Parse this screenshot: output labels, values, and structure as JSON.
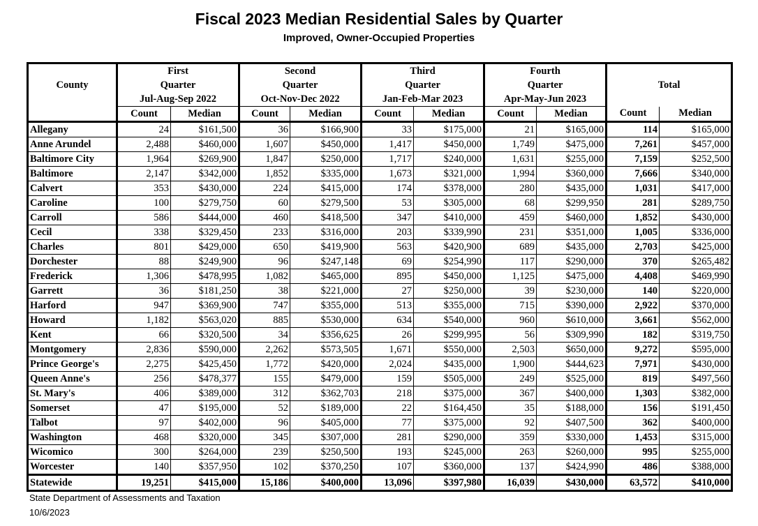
{
  "title": "Fiscal 2023 Median Residential Sales by Quarter",
  "subtitle": "Improved, Owner-Occupied Properties",
  "header": {
    "county": "County",
    "quarters": [
      {
        "line1": "First",
        "line2": "Quarter",
        "period": "Jul-Aug-Sep 2022"
      },
      {
        "line1": "Second",
        "line2": "Quarter",
        "period": "Oct-Nov-Dec 2022"
      },
      {
        "line1": "Third",
        "line2": "Quarter",
        "period": "Jan-Feb-Mar 2023"
      },
      {
        "line1": "Fourth",
        "line2": "Quarter",
        "period": "Apr-May-Jun 2023"
      }
    ],
    "total": "Total",
    "count": "Count",
    "median": "Median"
  },
  "rows": [
    {
      "county": "Allegany",
      "cells": [
        "24",
        "$161,500",
        "36",
        "$166,900",
        "33",
        "$175,000",
        "21",
        "$165,000",
        "114",
        "$165,000"
      ]
    },
    {
      "county": "Anne Arundel",
      "cells": [
        "2,488",
        "$460,000",
        "1,607",
        "$450,000",
        "1,417",
        "$450,000",
        "1,749",
        "$475,000",
        "7,261",
        "$457,000"
      ]
    },
    {
      "county": "Baltimore City",
      "cells": [
        "1,964",
        "$269,900",
        "1,847",
        "$250,000",
        "1,717",
        "$240,000",
        "1,631",
        "$255,000",
        "7,159",
        "$252,500"
      ]
    },
    {
      "county": "Baltimore",
      "cells": [
        "2,147",
        "$342,000",
        "1,852",
        "$335,000",
        "1,673",
        "$321,000",
        "1,994",
        "$360,000",
        "7,666",
        "$340,000"
      ]
    },
    {
      "county": "Calvert",
      "cells": [
        "353",
        "$430,000",
        "224",
        "$415,000",
        "174",
        "$378,000",
        "280",
        "$435,000",
        "1,031",
        "$417,000"
      ]
    },
    {
      "county": "Caroline",
      "cells": [
        "100",
        "$279,750",
        "60",
        "$279,500",
        "53",
        "$305,000",
        "68",
        "$299,950",
        "281",
        "$289,750"
      ]
    },
    {
      "county": "Carroll",
      "cells": [
        "586",
        "$444,000",
        "460",
        "$418,500",
        "347",
        "$410,000",
        "459",
        "$460,000",
        "1,852",
        "$430,000"
      ]
    },
    {
      "county": "Cecil",
      "cells": [
        "338",
        "$329,450",
        "233",
        "$316,000",
        "203",
        "$339,990",
        "231",
        "$351,000",
        "1,005",
        "$336,000"
      ]
    },
    {
      "county": "Charles",
      "cells": [
        "801",
        "$429,000",
        "650",
        "$419,900",
        "563",
        "$420,900",
        "689",
        "$435,000",
        "2,703",
        "$425,000"
      ]
    },
    {
      "county": "Dorchester",
      "cells": [
        "88",
        "$249,900",
        "96",
        "$247,148",
        "69",
        "$254,990",
        "117",
        "$290,000",
        "370",
        "$265,482"
      ]
    },
    {
      "county": "Frederick",
      "cells": [
        "1,306",
        "$478,995",
        "1,082",
        "$465,000",
        "895",
        "$450,000",
        "1,125",
        "$475,000",
        "4,408",
        "$469,990"
      ]
    },
    {
      "county": "Garrett",
      "cells": [
        "36",
        "$181,250",
        "38",
        "$221,000",
        "27",
        "$250,000",
        "39",
        "$230,000",
        "140",
        "$220,000"
      ]
    },
    {
      "county": "Harford",
      "cells": [
        "947",
        "$369,900",
        "747",
        "$355,000",
        "513",
        "$355,000",
        "715",
        "$390,000",
        "2,922",
        "$370,000"
      ]
    },
    {
      "county": "Howard",
      "cells": [
        "1,182",
        "$563,020",
        "885",
        "$530,000",
        "634",
        "$540,000",
        "960",
        "$610,000",
        "3,661",
        "$562,000"
      ]
    },
    {
      "county": "Kent",
      "cells": [
        "66",
        "$320,500",
        "34",
        "$356,625",
        "26",
        "$299,995",
        "56",
        "$309,990",
        "182",
        "$319,750"
      ]
    },
    {
      "county": "Montgomery",
      "cells": [
        "2,836",
        "$590,000",
        "2,262",
        "$573,505",
        "1,671",
        "$550,000",
        "2,503",
        "$650,000",
        "9,272",
        "$595,000"
      ]
    },
    {
      "county": "Prince George's",
      "cells": [
        "2,275",
        "$425,450",
        "1,772",
        "$420,000",
        "2,024",
        "$435,000",
        "1,900",
        "$444,623",
        "7,971",
        "$430,000"
      ]
    },
    {
      "county": "Queen Anne's",
      "cells": [
        "256",
        "$478,377",
        "155",
        "$479,000",
        "159",
        "$505,000",
        "249",
        "$525,000",
        "819",
        "$497,560"
      ]
    },
    {
      "county": "St. Mary's",
      "cells": [
        "406",
        "$389,000",
        "312",
        "$362,703",
        "218",
        "$375,000",
        "367",
        "$400,000",
        "1,303",
        "$382,000"
      ]
    },
    {
      "county": "Somerset",
      "cells": [
        "47",
        "$195,000",
        "52",
        "$189,000",
        "22",
        "$164,450",
        "35",
        "$188,000",
        "156",
        "$191,450"
      ]
    },
    {
      "county": "Talbot",
      "cells": [
        "97",
        "$402,000",
        "96",
        "$405,000",
        "77",
        "$375,000",
        "92",
        "$407,500",
        "362",
        "$400,000"
      ]
    },
    {
      "county": "Washington",
      "cells": [
        "468",
        "$320,000",
        "345",
        "$307,000",
        "281",
        "$290,000",
        "359",
        "$330,000",
        "1,453",
        "$315,000"
      ]
    },
    {
      "county": "Wicomico",
      "cells": [
        "300",
        "$264,000",
        "239",
        "$250,500",
        "193",
        "$245,000",
        "263",
        "$260,000",
        "995",
        "$255,000"
      ]
    },
    {
      "county": "Worcester",
      "cells": [
        "140",
        "$357,950",
        "102",
        "$370,250",
        "107",
        "$360,000",
        "137",
        "$424,990",
        "486",
        "$388,000"
      ]
    }
  ],
  "statewide": {
    "county": "Statewide",
    "cells": [
      "19,251",
      "$415,000",
      "15,186",
      "$400,000",
      "13,096",
      "$397,980",
      "16,039",
      "$430,000",
      "63,572",
      "$410,000"
    ]
  },
  "footer": {
    "agency": "State Department of Assessments and Taxation",
    "date": "10/6/2023"
  }
}
